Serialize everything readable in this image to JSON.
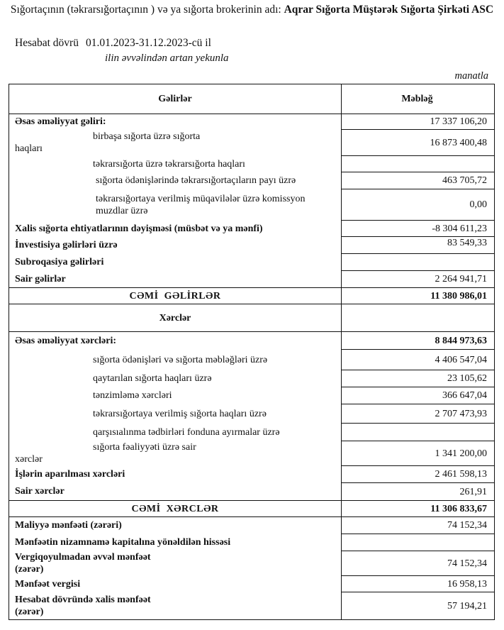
{
  "header": {
    "title_prefix": "Sığortaçının (təkrarsığortaçının ) və ya sığorta brokerinin adı: ",
    "company": "Aqrar Sığorta Müştərək Sığorta Şirkəti ASC",
    "period_label": "Hesabat dövrü",
    "period_value": "01.01.2023-31.12.2023-cü il",
    "cumulative_note": "ilin əvvəlindən artan yekunla",
    "unit": "manatla"
  },
  "table": {
    "columns": [
      "Gəlirlər",
      "Məbləğ"
    ],
    "rows": [
      {
        "lines": [
          "Əsas əməliyyat gəliri:"
        ],
        "value": "17 337 106,20",
        "style": "bold",
        "h": 22
      },
      {
        "lines": [
          "birbaşa sığorta üzrə sığorta",
          "haqları"
        ],
        "value": "16 873 400,48",
        "style": "split",
        "h": 37
      },
      {
        "lines": [
          "təkrarsığorta üzrə təkrarsığorta haqları"
        ],
        "value": "",
        "style": "ind",
        "h": 23
      },
      {
        "lines": [
          "sığorta ödənişlərində təkrarsığortaçıların payı üzrə"
        ],
        "value": "463 705,72",
        "style": "ind2",
        "h": 24
      },
      {
        "lines": [
          "təkrarsığortaya verilmiş müqavilələr üzrə komissyon",
          "muzdlar üzrə"
        ],
        "value": "0,00",
        "style": "ind2",
        "h": 44
      },
      {
        "lines": [
          "Xalis sığorta ehtiyatlarının dəyişməsi (müsbət və ya mənfi)"
        ],
        "value": "-8 304 611,23",
        "style": "bold",
        "h": 23
      },
      {
        "lines": [
          "İnvestisiya gəlirləri üzrə"
        ],
        "value": "83 549,33",
        "style": "bold",
        "valtop": true,
        "h": 24
      },
      {
        "lines": [
          "Subroqasiya gəlirləri"
        ],
        "value": "",
        "style": "bold",
        "h": 24
      },
      {
        "lines": [
          "Sair gəlirlər"
        ],
        "value": "2 264 941,71",
        "style": "bold",
        "line": true,
        "h": 24
      },
      {
        "lines": [
          "CƏMİ  GƏLİRLƏR"
        ],
        "value": "11 380 986,01",
        "style": "total",
        "line": true,
        "h": 23
      },
      {
        "lines": [
          "Xərclər"
        ],
        "value": "",
        "style": "section",
        "line": true,
        "h": 39
      },
      {
        "lines": [
          "Əsas əməliyyat xərcləri:"
        ],
        "value": "8 844 973,63",
        "style": "bold",
        "valbold": true,
        "h": 25
      },
      {
        "lines": [
          "sığorta ödənişləri və sığorta məbləğləri üzrə"
        ],
        "value": "4 406 547,04",
        "style": "ind",
        "h": 29
      },
      {
        "lines": [
          "qaytarılan sığorta haqları üzrə"
        ],
        "value": "23 105,62",
        "style": "ind",
        "h": 24
      },
      {
        "lines": [
          "tənzimləmə xərcləri"
        ],
        "value": "366 647,04",
        "style": "ind",
        "h": 24
      },
      {
        "lines": [
          "təkrarsığortaya verilmiş sığorta haqları üzrə"
        ],
        "value": "2 707 473,93",
        "style": "ind",
        "h": 27
      },
      {
        "lines": [
          "qarşısıalınma tədbirləri fonduna ayırmalar üzrə"
        ],
        "value": "",
        "style": "ind",
        "h": 25
      },
      {
        "lines": [
          "sığorta fəaliyyəti üzrə sair",
          "xərclər"
        ],
        "value": "1 341 200,00",
        "style": "split",
        "h": 35
      },
      {
        "lines": [
          "İşlərin aparılması xərcləri"
        ],
        "value": "2 461 598,13",
        "style": "bold",
        "h": 24
      },
      {
        "lines": [
          "Sair xərclər"
        ],
        "value": "261,91",
        "style": "bold",
        "line": true,
        "h": 25
      },
      {
        "lines": [
          "CƏMİ  XƏRCLƏR"
        ],
        "value": "11 306 833,67",
        "style": "total",
        "line": true,
        "h": 23
      },
      {
        "lines": [
          "Maliyyə mənfəəti (zərəri)"
        ],
        "value": "74 152,34",
        "style": "bold",
        "h": 24
      },
      {
        "lines": [
          "Mənfəətin nizamnamə kapitalına yönəldilən hissəsi"
        ],
        "value": "",
        "style": "bold",
        "h": 24
      },
      {
        "lines": [
          "Vergiqoyulmadan əvvəl mənfəət",
          "(zərər)"
        ],
        "value": "74 152,34",
        "style": "bold",
        "h": 35
      },
      {
        "lines": [
          "Mənfəət vergisi"
        ],
        "value": "16 958,13",
        "style": "bold",
        "h": 23
      },
      {
        "lines": [
          "Hesabat dövründə xalis mənfəət",
          "(zərər)"
        ],
        "value": "57 194,21",
        "style": "bold",
        "line": true,
        "h": 39
      }
    ]
  }
}
